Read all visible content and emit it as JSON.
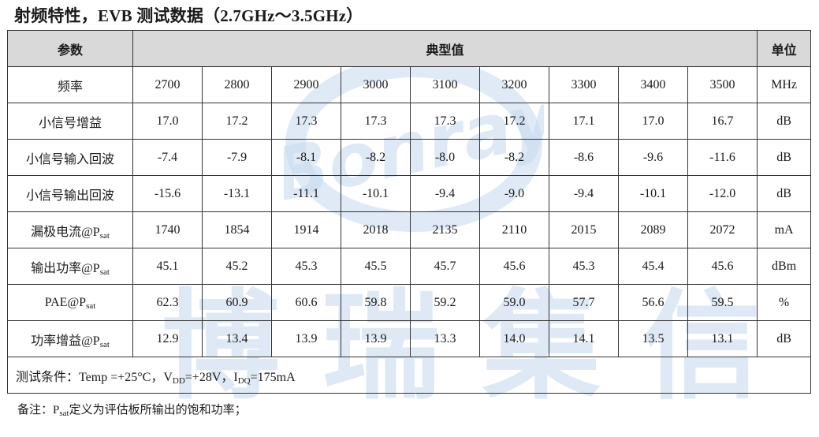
{
  "title": "射频特性，EVB 测试数据（2.7GHz～3.5GHz）",
  "header": {
    "param": "参数",
    "typical": "典型值",
    "unit": "单位"
  },
  "rows": [
    {
      "label": "频率",
      "sub": "",
      "values": [
        "2700",
        "2800",
        "2900",
        "3000",
        "3100",
        "3200",
        "3300",
        "3400",
        "3500"
      ],
      "unit": "MHz"
    },
    {
      "label": "小信号增益",
      "sub": "",
      "values": [
        "17.0",
        "17.2",
        "17.3",
        "17.3",
        "17.3",
        "17.2",
        "17.1",
        "17.0",
        "16.7"
      ],
      "unit": "dB"
    },
    {
      "label": "小信号输入回波",
      "sub": "",
      "values": [
        "-7.4",
        "-7.9",
        "-8.1",
        "-8.2",
        "-8.0",
        "-8.2",
        "-8.6",
        "-9.6",
        "-11.6"
      ],
      "unit": "dB"
    },
    {
      "label": "小信号输出回波",
      "sub": "",
      "values": [
        "-15.6",
        "-13.1",
        "-11.1",
        "-10.1",
        "-9.4",
        "-9.0",
        "-9.4",
        "-10.1",
        "-12.0"
      ],
      "unit": "dB"
    },
    {
      "label": "漏极电流@P",
      "sub": "sat",
      "values": [
        "1740",
        "1854",
        "1914",
        "2018",
        "2135",
        "2110",
        "2015",
        "2089",
        "2072"
      ],
      "unit": "mA"
    },
    {
      "label": "输出功率@P",
      "sub": "sat",
      "values": [
        "45.1",
        "45.2",
        "45.3",
        "45.5",
        "45.7",
        "45.6",
        "45.3",
        "45.4",
        "45.6"
      ],
      "unit": "dBm"
    },
    {
      "label": "PAE@P",
      "sub": "sat",
      "values": [
        "62.3",
        "60.9",
        "60.6",
        "59.8",
        "59.2",
        "59.0",
        "57.7",
        "56.6",
        "59.5"
      ],
      "unit": "%"
    },
    {
      "label": "功率增益@P",
      "sub": "sat",
      "values": [
        "12.9",
        "13.4",
        "13.9",
        "13.9",
        "13.3",
        "14.0",
        "14.1",
        "13.5",
        "13.1"
      ],
      "unit": "dB"
    }
  ],
  "conditions": {
    "prefix": "测试条件：Temp =+25°C，V",
    "vdd_sub": "DD",
    "vdd_val": "=+28V，I",
    "idq_sub": "DQ",
    "idq_val": "=175mA"
  },
  "note": {
    "prefix": "备注：P",
    "sub": "sat",
    "suffix": "定义为评估板所输出的饱和功率；"
  },
  "watermark": {
    "logo_text": "Bonray",
    "chars": [
      "博",
      "瑞",
      "集",
      "信"
    ]
  }
}
